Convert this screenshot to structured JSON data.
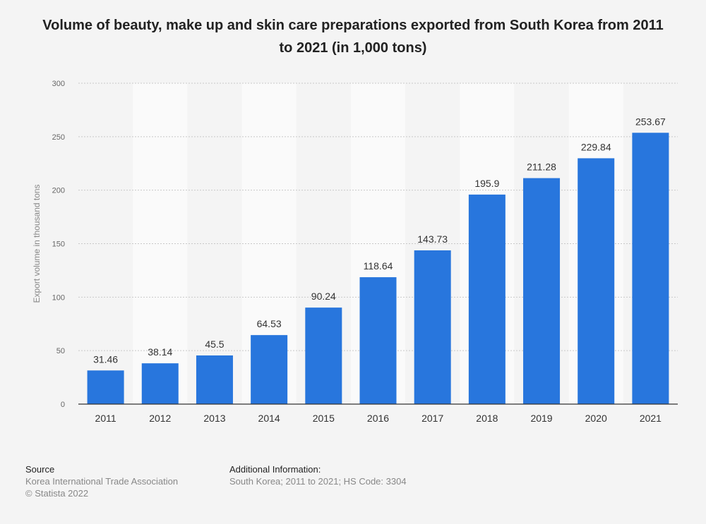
{
  "chart_data": {
    "type": "bar",
    "title": "Volume of beauty, make up and skin care preparations exported from South Korea from 2011 to 2021 (in 1,000 tons)",
    "xlabel": "",
    "ylabel": "Export volume in thousand tons",
    "categories": [
      "2011",
      "2012",
      "2013",
      "2014",
      "2015",
      "2016",
      "2017",
      "2018",
      "2019",
      "2020",
      "2021"
    ],
    "values": [
      31.46,
      38.14,
      45.5,
      64.53,
      90.24,
      118.64,
      143.73,
      195.9,
      211.28,
      229.84,
      253.67
    ],
    "value_labels": [
      "31.46",
      "38.14",
      "45.5",
      "64.53",
      "90.24",
      "118.64",
      "143.73",
      "195.9",
      "211.28",
      "229.84",
      "253.67"
    ],
    "ylim": [
      0,
      300
    ],
    "yticks": [
      0,
      50,
      100,
      150,
      200,
      250,
      300
    ],
    "ytick_labels": [
      "0",
      "50",
      "100",
      "150",
      "200",
      "250",
      "300"
    ],
    "grid": true,
    "legend": "none",
    "bar_color": "#2876dd",
    "band_color": "#fafafa"
  },
  "footer": {
    "source_heading": "Source",
    "source_lines": [
      "Korea International Trade Association",
      "© Statista 2022"
    ],
    "info_heading": "Additional Information:",
    "info_lines": [
      "South Korea; 2011 to 2021; HS Code: 3304"
    ]
  }
}
